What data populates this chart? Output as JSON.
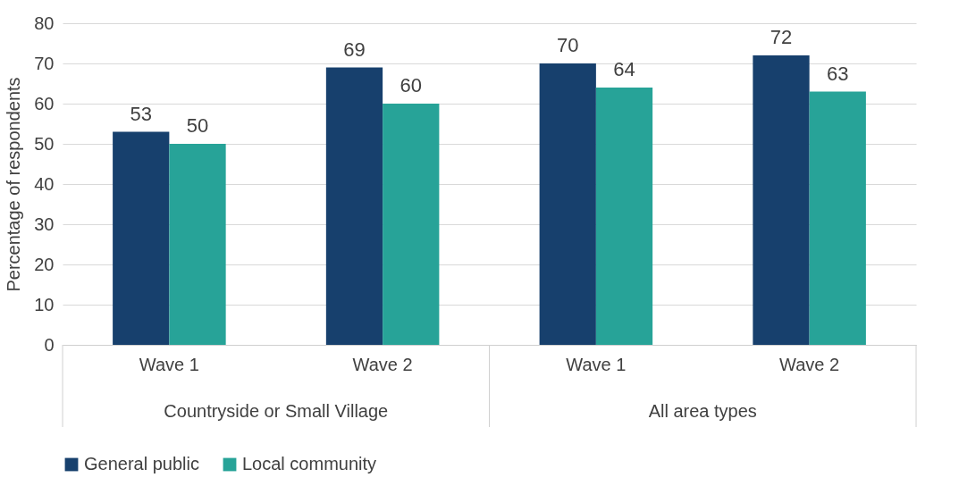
{
  "chart_data": {
    "type": "bar",
    "ylabel": "Percentage of respondents",
    "categories": [
      "Wave 1",
      "Wave 2",
      "Wave 1",
      "Wave 2"
    ],
    "annotations": [
      "Countryside or Small Village",
      "All area types"
    ],
    "series": [
      {
        "name": "General public",
        "color": "#17406d",
        "values": [
          53,
          69,
          70,
          72
        ]
      },
      {
        "name": "Local community",
        "color": "#27a398",
        "values": [
          50,
          60,
          64,
          63
        ]
      }
    ],
    "ylim": [
      0,
      80
    ],
    "yticks": [
      0,
      10,
      20,
      30,
      40,
      50,
      60,
      70,
      80
    ],
    "grid": "y",
    "legend": "bottom",
    "data_labels": true
  }
}
